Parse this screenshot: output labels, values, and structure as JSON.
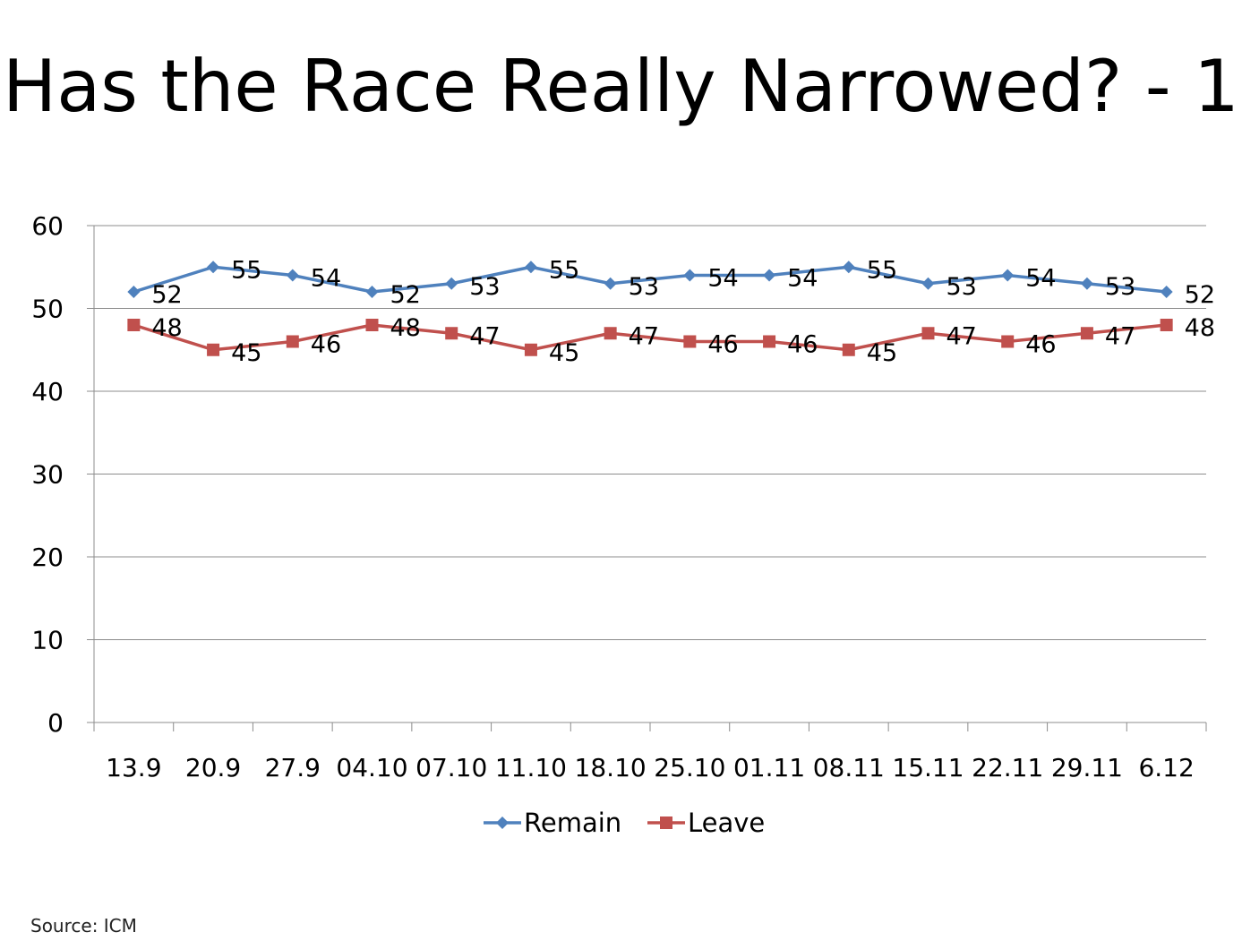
{
  "slide": {
    "title": "Has the Race Really Narrowed? - 1",
    "source": "Source: ICM"
  },
  "chart_data": {
    "type": "line",
    "title": "",
    "xlabel": "",
    "ylabel": "",
    "categories": [
      "13.9",
      "20.9",
      "27.9",
      "04.10",
      "07.10",
      "11.10",
      "18.10",
      "25.10",
      "01.11",
      "08.11",
      "15.11",
      "22.11",
      "29.11",
      "6.12"
    ],
    "ylim": [
      0,
      60
    ],
    "yticks": [
      0,
      10,
      20,
      30,
      40,
      50,
      60
    ],
    "grid": true,
    "legend_position": "bottom",
    "data_labels": true,
    "series": [
      {
        "name": "Remain",
        "color": "#4F81BD",
        "marker": "diamond",
        "values": [
          52,
          55,
          54,
          52,
          53,
          55,
          53,
          54,
          54,
          55,
          53,
          54,
          53,
          52
        ]
      },
      {
        "name": "Leave",
        "color": "#C0504D",
        "marker": "square",
        "values": [
          48,
          45,
          46,
          48,
          47,
          45,
          47,
          46,
          46,
          45,
          47,
          46,
          47,
          48
        ]
      }
    ]
  }
}
